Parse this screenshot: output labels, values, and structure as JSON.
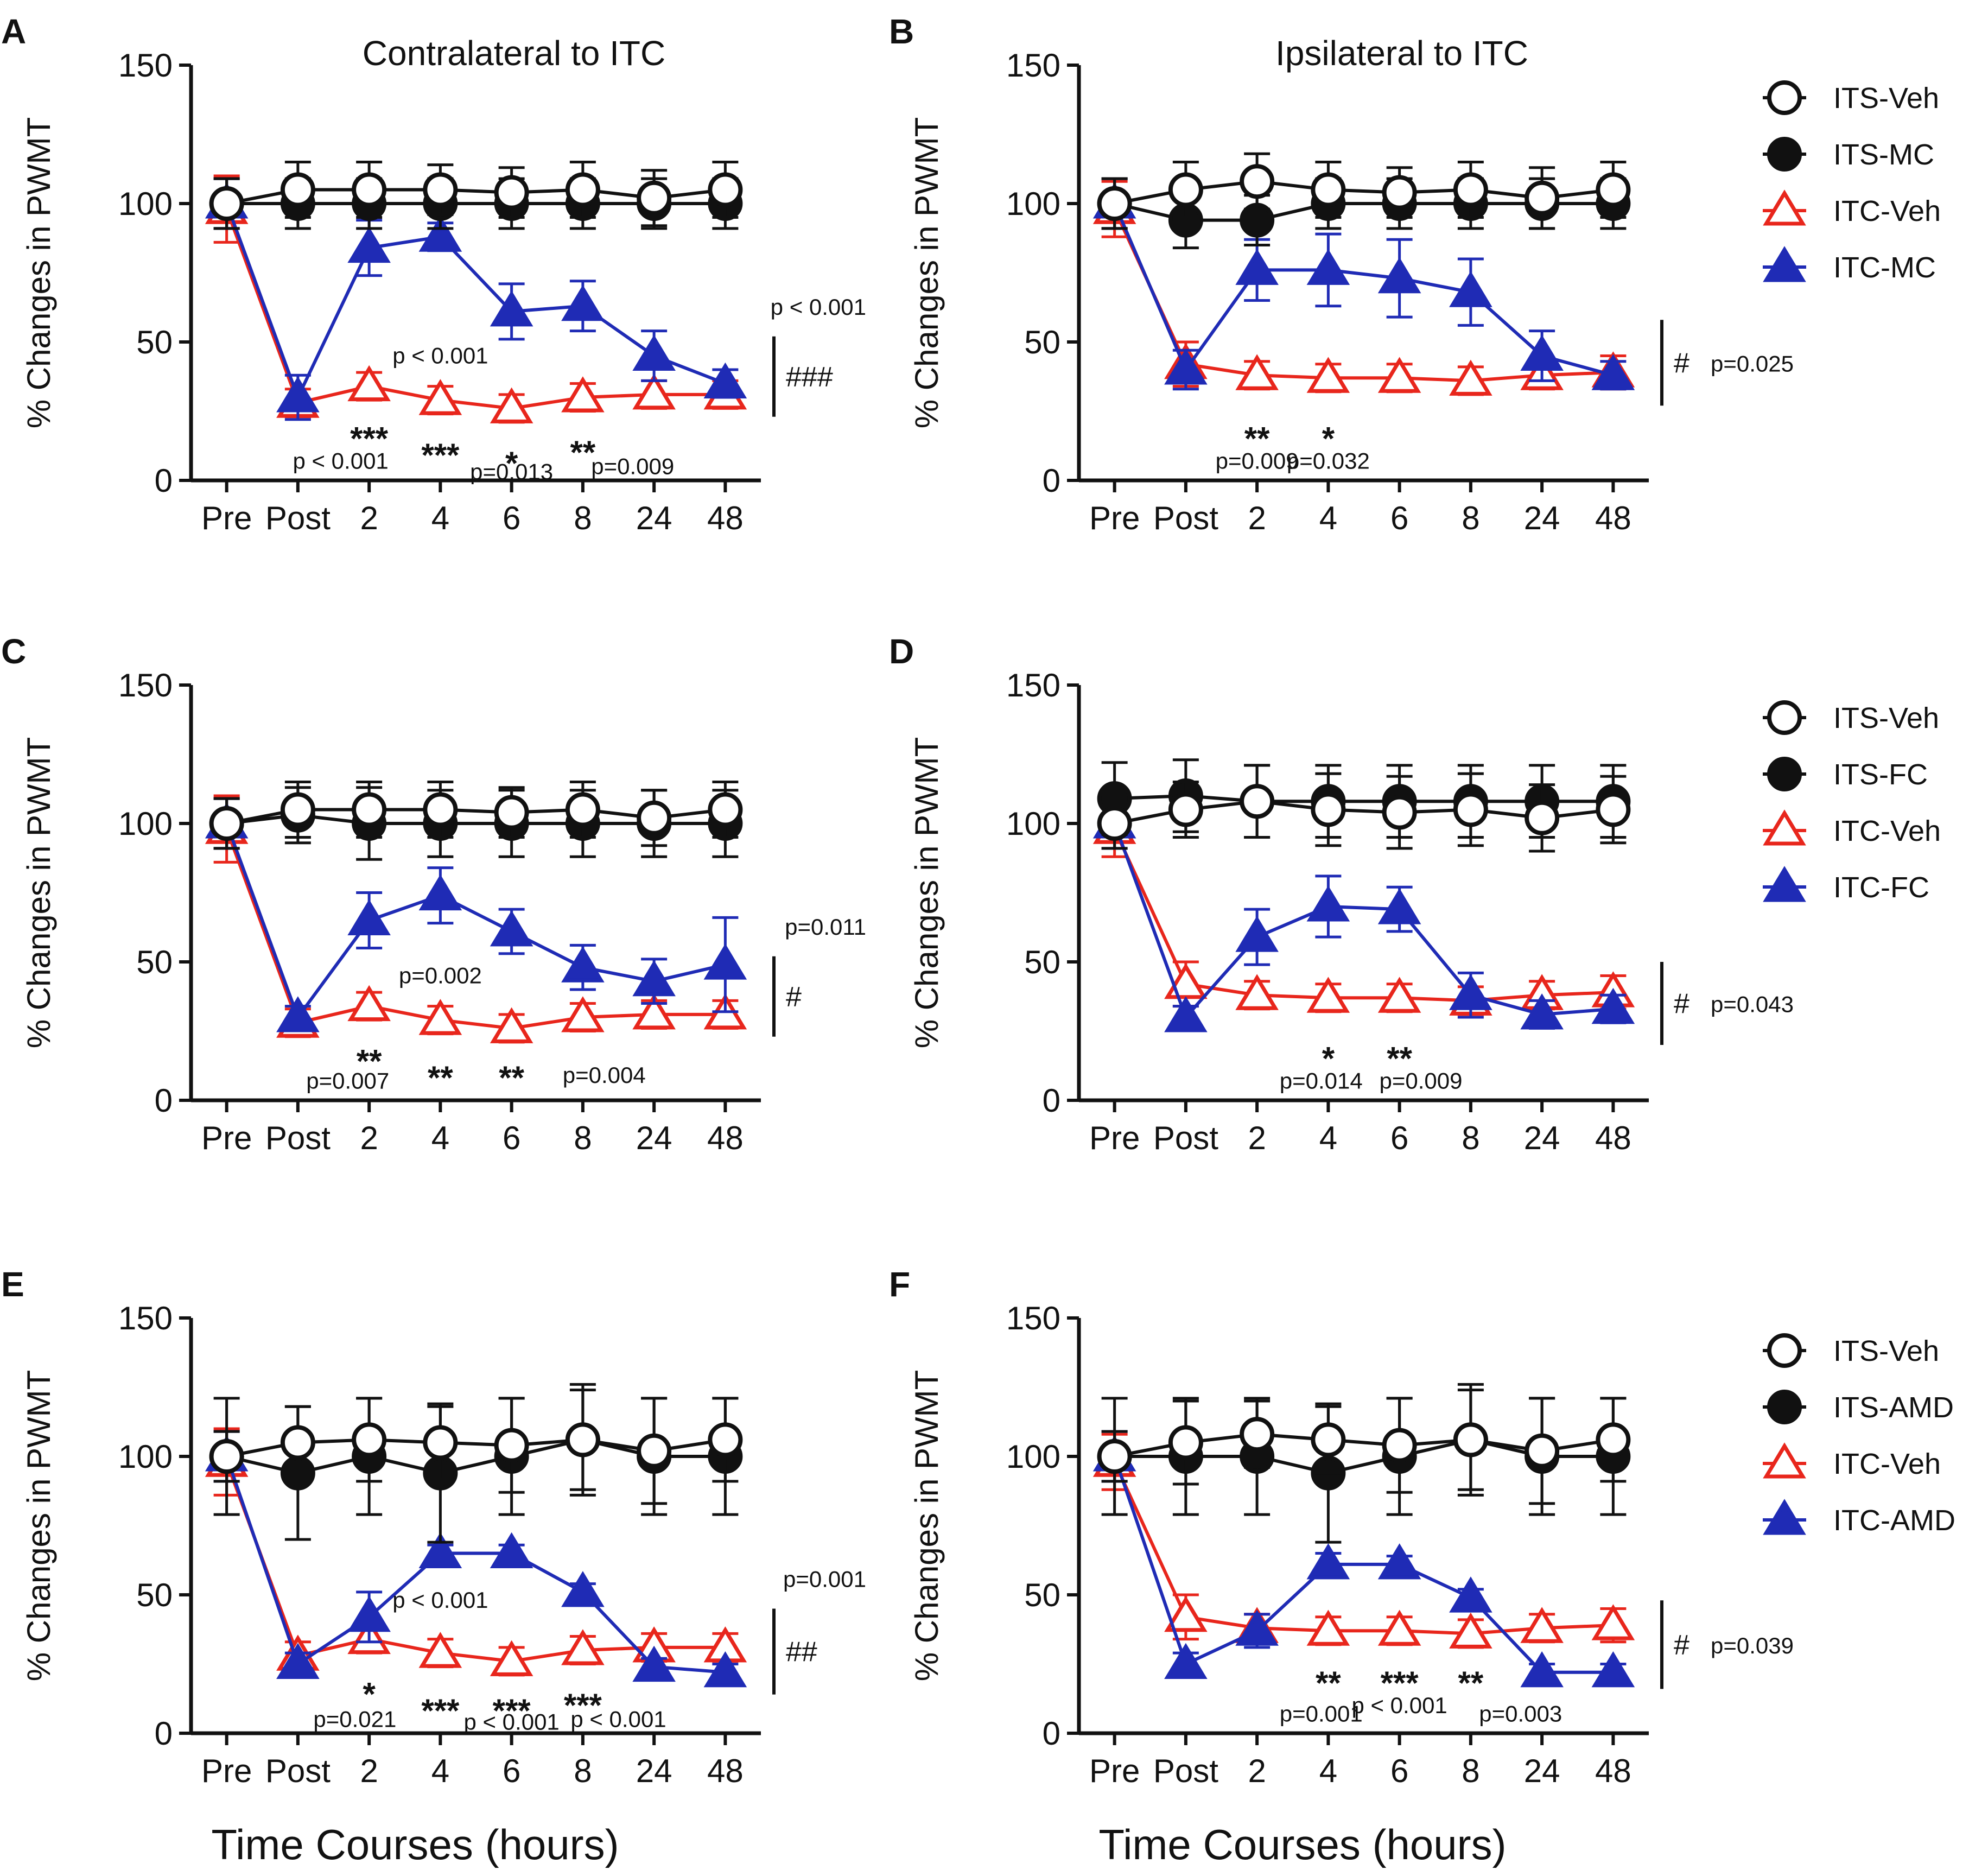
{
  "colors": {
    "ITS-Veh": "#111111",
    "ITS-drug": "#111111",
    "ITC-Veh": "#e8261c",
    "ITC-drug": "#1f2bb5"
  },
  "shared": {
    "xtitle": "Time Courses (hours)",
    "ylabel": "% Changes in PWMT"
  },
  "chart_data": [
    {
      "label": "A",
      "title": "Contralateral to ITC",
      "type": "line",
      "categories": [
        "Pre",
        "Post",
        "2",
        "4",
        "6",
        "8",
        "24",
        "48"
      ],
      "ylabel": "% Changes in PWMT",
      "ylim": [
        0,
        150
      ],
      "yticks": [
        0,
        50,
        100,
        150
      ],
      "series": [
        {
          "name": "ITS-Veh",
          "values": [
            100,
            105,
            105,
            105,
            104,
            105,
            102,
            105
          ],
          "err": [
            9,
            10,
            10,
            9,
            9,
            10,
            10,
            10
          ]
        },
        {
          "name": "ITS-MC",
          "values": [
            100,
            100,
            100,
            100,
            100,
            100,
            100,
            100
          ],
          "err": [
            9,
            9,
            9,
            9,
            9,
            9,
            9,
            9
          ]
        },
        {
          "name": "ITC-Veh",
          "values": [
            98,
            28,
            34,
            29,
            26,
            30,
            31,
            31
          ],
          "err": [
            12,
            5,
            5,
            5,
            5,
            5,
            5,
            5
          ]
        },
        {
          "name": "ITC-MC",
          "values": [
            100,
            30,
            84,
            88,
            61,
            63,
            45,
            35
          ],
          "err": [
            9,
            8,
            10,
            5,
            10,
            9,
            9,
            5
          ]
        }
      ],
      "annotations": [
        {
          "text": "p < 0.001",
          "cat": 3,
          "y": 45
        },
        {
          "text": "***",
          "cat": 2,
          "y": 17
        },
        {
          "text": "***",
          "cat": 3,
          "y": 11
        },
        {
          "text": "*",
          "cat": 4,
          "y": 8
        },
        {
          "text": "**",
          "cat": 5,
          "y": 12
        },
        {
          "text": "p < 0.001",
          "cat": 1.6,
          "y": 7
        },
        {
          "text": "p=0.013",
          "cat": 4,
          "y": 3
        },
        {
          "text": "p=0.009",
          "cat": 5.7,
          "y": 5
        }
      ],
      "sig": {
        "text": "###",
        "p": "p < 0.001",
        "ymin": 23,
        "ymax": 52
      }
    },
    {
      "label": "B",
      "title": "Ipsilateral to ITC",
      "type": "line",
      "categories": [
        "Pre",
        "Post",
        "2",
        "4",
        "6",
        "8",
        "24",
        "48"
      ],
      "ylabel": "% Changes in PWMT",
      "ylim": [
        0,
        150
      ],
      "yticks": [
        0,
        50,
        100,
        150
      ],
      "series": [
        {
          "name": "ITS-Veh",
          "values": [
            100,
            105,
            108,
            105,
            104,
            105,
            102,
            105
          ],
          "err": [
            9,
            10,
            10,
            10,
            9,
            10,
            11,
            10
          ]
        },
        {
          "name": "ITS-MC",
          "values": [
            100,
            94,
            94,
            100,
            100,
            100,
            100,
            100
          ],
          "err": [
            9,
            10,
            9,
            9,
            9,
            9,
            9,
            9
          ]
        },
        {
          "name": "ITC-Veh",
          "values": [
            98,
            42,
            38,
            37,
            37,
            36,
            38,
            39
          ],
          "err": [
            10,
            8,
            5,
            5,
            5,
            5,
            5,
            6
          ]
        },
        {
          "name": "ITC-MC",
          "values": [
            100,
            40,
            76,
            76,
            73,
            68,
            45,
            38
          ],
          "err": [
            9,
            7,
            11,
            13,
            14,
            12,
            9,
            5
          ]
        }
      ],
      "annotations": [
        {
          "text": "**",
          "cat": 2,
          "y": 17
        },
        {
          "text": "*",
          "cat": 3,
          "y": 17
        },
        {
          "text": "p=0.009",
          "cat": 2,
          "y": 7
        },
        {
          "text": "p=0.032",
          "cat": 3,
          "y": 7
        }
      ],
      "sig": {
        "text": "#",
        "p": "p=0.025",
        "ymin": 27,
        "ymax": 58
      }
    },
    {
      "label": "C",
      "title": "",
      "type": "line",
      "categories": [
        "Pre",
        "Post",
        "2",
        "4",
        "6",
        "8",
        "24",
        "48"
      ],
      "ylabel": "% Changes in PWMT",
      "ylim": [
        0,
        150
      ],
      "yticks": [
        0,
        50,
        100,
        150
      ],
      "series": [
        {
          "name": "ITS-Veh",
          "values": [
            100,
            105,
            105,
            105,
            104,
            105,
            102,
            105
          ],
          "err": [
            9,
            10,
            10,
            10,
            9,
            10,
            10,
            10
          ]
        },
        {
          "name": "ITS-FC",
          "values": [
            100,
            103,
            100,
            100,
            100,
            100,
            100,
            100
          ],
          "err": [
            9,
            10,
            13,
            12,
            12,
            12,
            12,
            12
          ]
        },
        {
          "name": "ITC-Veh",
          "values": [
            98,
            28,
            34,
            29,
            26,
            30,
            31,
            31
          ],
          "err": [
            12,
            5,
            5,
            5,
            5,
            5,
            5,
            5
          ]
        },
        {
          "name": "ITC-FC",
          "values": [
            100,
            30,
            65,
            74,
            61,
            48,
            43,
            49
          ],
          "err": [
            9,
            4,
            10,
            10,
            8,
            8,
            8,
            17
          ]
        }
      ],
      "annotations": [
        {
          "text": "p=0.002",
          "cat": 3,
          "y": 45
        },
        {
          "text": "**",
          "cat": 2,
          "y": 16
        },
        {
          "text": "**",
          "cat": 3,
          "y": 10
        },
        {
          "text": "**",
          "cat": 4,
          "y": 10
        },
        {
          "text": "p=0.007",
          "cat": 1.7,
          "y": 7
        },
        {
          "text": "p=0.004",
          "cat": 5.3,
          "y": 9
        }
      ],
      "sig": {
        "text": "#",
        "p": "p=0.011",
        "ymin": 23,
        "ymax": 52
      }
    },
    {
      "label": "D",
      "title": "",
      "type": "line",
      "categories": [
        "Pre",
        "Post",
        "2",
        "4",
        "6",
        "8",
        "24",
        "48"
      ],
      "ylabel": "% Changes in PWMT",
      "ylim": [
        0,
        150
      ],
      "yticks": [
        0,
        50,
        100,
        150
      ],
      "series": [
        {
          "name": "ITS-Veh",
          "values": [
            100,
            105,
            108,
            105,
            104,
            105,
            102,
            105
          ],
          "err": [
            9,
            10,
            13,
            13,
            13,
            13,
            12,
            12
          ]
        },
        {
          "name": "ITS-FC",
          "values": [
            109,
            110,
            108,
            108,
            108,
            108,
            108,
            108
          ],
          "err": [
            13,
            13,
            13,
            13,
            13,
            13,
            13,
            13
          ]
        },
        {
          "name": "ITC-Veh",
          "values": [
            98,
            42,
            38,
            37,
            37,
            36,
            38,
            39
          ],
          "err": [
            10,
            8,
            5,
            5,
            5,
            5,
            5,
            6
          ]
        },
        {
          "name": "ITC-FC",
          "values": [
            100,
            30,
            59,
            70,
            69,
            38,
            31,
            33
          ],
          "err": [
            9,
            4,
            10,
            11,
            8,
            8,
            5,
            5
          ]
        }
      ],
      "annotations": [
        {
          "text": "*",
          "cat": 3,
          "y": 17
        },
        {
          "text": "**",
          "cat": 4,
          "y": 17
        },
        {
          "text": "p=0.014",
          "cat": 2.9,
          "y": 7
        },
        {
          "text": "p=0.009",
          "cat": 4.3,
          "y": 7
        }
      ],
      "sig": {
        "text": "#",
        "p": "p=0.043",
        "ymin": 20,
        "ymax": 50
      }
    },
    {
      "label": "E",
      "title": "",
      "type": "line",
      "categories": [
        "Pre",
        "Post",
        "2",
        "4",
        "6",
        "8",
        "24",
        "48"
      ],
      "ylabel": "% Changes in PWMT",
      "ylim": [
        0,
        150
      ],
      "yticks": [
        0,
        50,
        100,
        150
      ],
      "series": [
        {
          "name": "ITS-Veh",
          "values": [
            100,
            105,
            106,
            105,
            104,
            106,
            102,
            106
          ],
          "err": [
            21,
            13,
            15,
            13,
            17,
            20,
            19,
            15
          ]
        },
        {
          "name": "ITS-AMD",
          "values": [
            100,
            94,
            100,
            94,
            100,
            106,
            100,
            100
          ],
          "err": [
            9,
            24,
            21,
            25,
            21,
            18,
            21,
            21
          ]
        },
        {
          "name": "ITC-Veh",
          "values": [
            98,
            28,
            34,
            29,
            26,
            30,
            31,
            31
          ],
          "err": [
            12,
            5,
            5,
            5,
            5,
            5,
            5,
            5
          ]
        },
        {
          "name": "ITC-AMD",
          "values": [
            100,
            25,
            42,
            65,
            65,
            51,
            24,
            22
          ],
          "err": [
            9,
            4,
            9,
            3,
            3,
            3,
            3,
            3
          ]
        }
      ],
      "annotations": [
        {
          "text": "p < 0.001",
          "cat": 3,
          "y": 48
        },
        {
          "text": "*",
          "cat": 2,
          "y": 16
        },
        {
          "text": "***",
          "cat": 3,
          "y": 10
        },
        {
          "text": "***",
          "cat": 4,
          "y": 10
        },
        {
          "text": "***",
          "cat": 5,
          "y": 12
        },
        {
          "text": "p=0.021",
          "cat": 1.8,
          "y": 5
        },
        {
          "text": "p < 0.001",
          "cat": 4,
          "y": 4
        },
        {
          "text": "p < 0.001",
          "cat": 5.5,
          "y": 5
        }
      ],
      "sig": {
        "text": "##",
        "p": "p=0.001",
        "ymin": 14,
        "ymax": 45
      }
    },
    {
      "label": "F",
      "title": "",
      "type": "line",
      "categories": [
        "Pre",
        "Post",
        "2",
        "4",
        "6",
        "8",
        "24",
        "48"
      ],
      "ylabel": "% Changes in PWMT",
      "ylim": [
        0,
        150
      ],
      "yticks": [
        0,
        50,
        100,
        150
      ],
      "series": [
        {
          "name": "ITS-Veh",
          "values": [
            100,
            105,
            108,
            106,
            104,
            106,
            102,
            106
          ],
          "err": [
            21,
            15,
            12,
            12,
            17,
            20,
            19,
            15
          ]
        },
        {
          "name": "ITS-AMD",
          "values": [
            100,
            100,
            100,
            94,
            100,
            106,
            100,
            100
          ],
          "err": [
            9,
            21,
            21,
            25,
            21,
            18,
            21,
            21
          ]
        },
        {
          "name": "ITC-Veh",
          "values": [
            98,
            42,
            38,
            37,
            37,
            36,
            38,
            39
          ],
          "err": [
            10,
            8,
            5,
            5,
            5,
            5,
            5,
            6
          ]
        },
        {
          "name": "ITC-AMD",
          "values": [
            100,
            25,
            37,
            61,
            61,
            49,
            22,
            22
          ],
          "err": [
            9,
            4,
            6,
            4,
            3,
            3,
            3,
            3
          ]
        }
      ],
      "annotations": [
        {
          "text": "**",
          "cat": 3,
          "y": 20
        },
        {
          "text": "***",
          "cat": 4,
          "y": 20
        },
        {
          "text": "**",
          "cat": 5,
          "y": 20
        },
        {
          "text": "p=0.001",
          "cat": 2.9,
          "y": 7
        },
        {
          "text": "p < 0.001",
          "cat": 4,
          "y": 10
        },
        {
          "text": "p=0.003",
          "cat": 5.7,
          "y": 7
        }
      ],
      "sig": {
        "text": "#",
        "p": "p=0.039",
        "ymin": 16,
        "ymax": 48
      }
    }
  ]
}
